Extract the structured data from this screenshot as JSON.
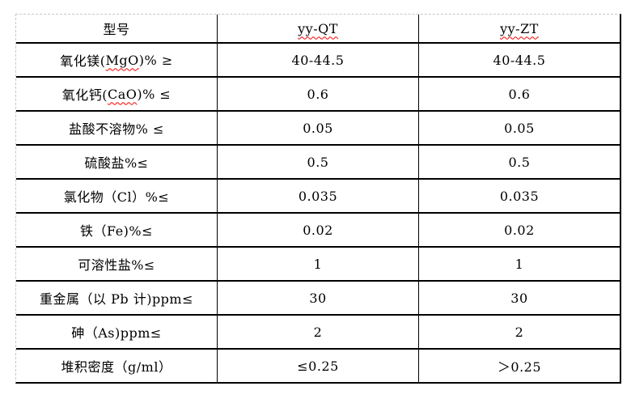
{
  "colors": {
    "grid_line": "#000000",
    "outer_dashed_border": "#c6c6c6",
    "spellcheck_underline": "#ff0000",
    "text": "#000000",
    "background": "#ffffff"
  },
  "table": {
    "columns": [
      "label",
      "yy-QT",
      "yy-ZT"
    ],
    "rows": [
      {
        "c0": {
          "pre": "型号",
          "wavy": "",
          "post": ""
        },
        "c1": {
          "pre": "",
          "wavy": "yy-QT",
          "post": ""
        },
        "c2": {
          "pre": "",
          "wavy": "yy-ZT",
          "post": ""
        }
      },
      {
        "c0": {
          "pre": "氧化镁(",
          "wavy": "MgO",
          "post": ")% ≥"
        },
        "c1": {
          "pre": "40-44.5",
          "wavy": "",
          "post": ""
        },
        "c2": {
          "pre": "40-44.5",
          "wavy": "",
          "post": ""
        }
      },
      {
        "c0": {
          "pre": "氧化钙(",
          "wavy": "CaO",
          "post": ")% ≤"
        },
        "c1": {
          "pre": "0.6",
          "wavy": "",
          "post": ""
        },
        "c2": {
          "pre": "0.6",
          "wavy": "",
          "post": ""
        }
      },
      {
        "c0": {
          "pre": "盐酸不溶物% ≤",
          "wavy": "",
          "post": ""
        },
        "c1": {
          "pre": "0.05",
          "wavy": "",
          "post": ""
        },
        "c2": {
          "pre": "0.05",
          "wavy": "",
          "post": ""
        }
      },
      {
        "c0": {
          "pre": "硫酸盐%≤",
          "wavy": "",
          "post": ""
        },
        "c1": {
          "pre": "0.5",
          "wavy": "",
          "post": ""
        },
        "c2": {
          "pre": "0.5",
          "wavy": "",
          "post": ""
        }
      },
      {
        "c0": {
          "pre": "氯化物（Cl）%≤",
          "wavy": "",
          "post": ""
        },
        "c1": {
          "pre": "0.035",
          "wavy": "",
          "post": ""
        },
        "c2": {
          "pre": "0.035",
          "wavy": "",
          "post": ""
        }
      },
      {
        "c0": {
          "pre": "铁（Fe)%≤",
          "wavy": "",
          "post": ""
        },
        "c1": {
          "pre": "0.02",
          "wavy": "",
          "post": ""
        },
        "c2": {
          "pre": "0.02",
          "wavy": "",
          "post": ""
        }
      },
      {
        "c0": {
          "pre": "可溶性盐%≤",
          "wavy": "",
          "post": ""
        },
        "c1": {
          "pre": "1",
          "wavy": "",
          "post": ""
        },
        "c2": {
          "pre": "1",
          "wavy": "",
          "post": ""
        }
      },
      {
        "c0": {
          "pre": "重金属（以 Pb 计)ppm≤",
          "wavy": "",
          "post": ""
        },
        "c1": {
          "pre": "30",
          "wavy": "",
          "post": ""
        },
        "c2": {
          "pre": "30",
          "wavy": "",
          "post": ""
        }
      },
      {
        "c0": {
          "pre": "砷（As)ppm≤",
          "wavy": "",
          "post": ""
        },
        "c1": {
          "pre": "2",
          "wavy": "",
          "post": ""
        },
        "c2": {
          "pre": "2",
          "wavy": "",
          "post": ""
        }
      },
      {
        "c0": {
          "pre": "堆积密度（g/ml）",
          "wavy": "",
          "post": ""
        },
        "c1": {
          "pre": "≤0.25",
          "wavy": "",
          "post": ""
        },
        "c2": {
          "pre": "＞0.25",
          "wavy": "",
          "post": ""
        }
      }
    ]
  }
}
